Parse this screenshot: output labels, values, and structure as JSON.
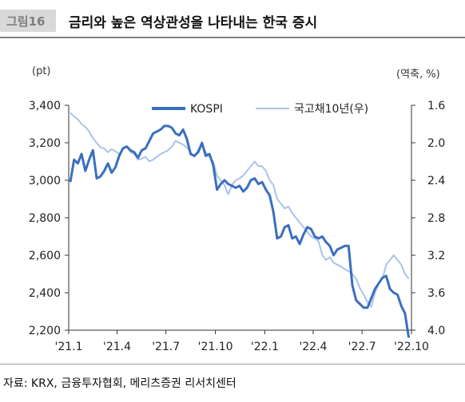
{
  "header": {
    "figure_number": "그림16",
    "title": "금리와 높은 역상관성을 나타내는 한국 증시"
  },
  "units": {
    "left": "(pt)",
    "right": "(역축, %)"
  },
  "source": "자료: KRX, 금융투자협회, 메리츠증권 리서치센터",
  "colors": {
    "kospi": "#3a6fbf",
    "bond": "#a9c4ea",
    "axis": "#333333",
    "title_bar": "#d9d9d9"
  },
  "chart_data": {
    "type": "line",
    "legend_position": "top",
    "grid": false,
    "x_tick_labels": [
      "'21.1",
      "'21.4",
      "'21.7",
      "'21.10",
      "'22.1",
      "'22.4",
      "'22.7",
      "'22.10"
    ],
    "x_tick_dates": [
      "2021-01-01",
      "2021-04-01",
      "2021-07-01",
      "2021-10-01",
      "2022-01-01",
      "2022-04-01",
      "2022-07-01",
      "2022-10-01"
    ],
    "y_left": {
      "min": 2200,
      "max": 3400,
      "ticks": [
        "2,200",
        "2,400",
        "2,600",
        "2,800",
        "3,000",
        "3,200",
        "3,400"
      ]
    },
    "y_right": {
      "min": 1.6,
      "max": 4.0,
      "inverted": true,
      "ticks": [
        "1.6",
        "2.0",
        "2.4",
        "2.8",
        "3.2",
        "3.6",
        "4.0"
      ]
    },
    "series": [
      {
        "name": "KOSPI",
        "axis": "left",
        "x": [
          "2021-01-04",
          "2021-01-11",
          "2021-01-18",
          "2021-01-25",
          "2021-02-01",
          "2021-02-08",
          "2021-02-15",
          "2021-02-22",
          "2021-03-01",
          "2021-03-08",
          "2021-03-15",
          "2021-03-22",
          "2021-03-29",
          "2021-04-05",
          "2021-04-12",
          "2021-04-19",
          "2021-04-26",
          "2021-05-03",
          "2021-05-10",
          "2021-05-17",
          "2021-05-24",
          "2021-05-31",
          "2021-06-07",
          "2021-06-14",
          "2021-06-21",
          "2021-06-28",
          "2021-07-05",
          "2021-07-12",
          "2021-07-19",
          "2021-07-26",
          "2021-08-02",
          "2021-08-09",
          "2021-08-16",
          "2021-08-23",
          "2021-08-30",
          "2021-09-06",
          "2021-09-13",
          "2021-09-20",
          "2021-09-27",
          "2021-10-04",
          "2021-10-11",
          "2021-10-18",
          "2021-10-25",
          "2021-11-01",
          "2021-11-08",
          "2021-11-15",
          "2021-11-22",
          "2021-11-29",
          "2021-12-06",
          "2021-12-13",
          "2021-12-20",
          "2021-12-27",
          "2022-01-03",
          "2022-01-10",
          "2022-01-17",
          "2022-01-24",
          "2022-01-31",
          "2022-02-07",
          "2022-02-14",
          "2022-02-21",
          "2022-02-28",
          "2022-03-07",
          "2022-03-14",
          "2022-03-21",
          "2022-03-28",
          "2022-04-04",
          "2022-04-11",
          "2022-04-18",
          "2022-04-25",
          "2022-05-02",
          "2022-05-09",
          "2022-05-16",
          "2022-05-23",
          "2022-05-30",
          "2022-06-06",
          "2022-06-13",
          "2022-06-20",
          "2022-06-27",
          "2022-07-04",
          "2022-07-11",
          "2022-07-18",
          "2022-07-25",
          "2022-08-01",
          "2022-08-08",
          "2022-08-15",
          "2022-08-22",
          "2022-08-29",
          "2022-09-05",
          "2022-09-12",
          "2022-09-19",
          "2022-09-26"
        ],
        "values": [
          2990,
          3110,
          3090,
          3140,
          3050,
          3110,
          3160,
          3010,
          3020,
          3050,
          3090,
          3040,
          3070,
          3130,
          3170,
          3180,
          3160,
          3150,
          3120,
          3160,
          3170,
          3210,
          3250,
          3260,
          3270,
          3290,
          3290,
          3280,
          3250,
          3240,
          3270,
          3220,
          3140,
          3130,
          3150,
          3200,
          3130,
          3140,
          3080,
          2950,
          2980,
          3000,
          2980,
          2970,
          2960,
          2970,
          2940,
          2960,
          3000,
          3010,
          2980,
          2990,
          2950,
          2920,
          2830,
          2690,
          2700,
          2750,
          2760,
          2690,
          2700,
          2660,
          2710,
          2750,
          2740,
          2700,
          2690,
          2700,
          2670,
          2650,
          2600,
          2630,
          2640,
          2650,
          2650,
          2440,
          2360,
          2340,
          2320,
          2320,
          2370,
          2420,
          2450,
          2480,
          2490,
          2420,
          2400,
          2390,
          2330,
          2290,
          2160
        ]
      },
      {
        "name": "국고채10년(우)",
        "axis": "right",
        "x": [
          "2021-01-04",
          "2021-01-11",
          "2021-01-18",
          "2021-01-25",
          "2021-02-01",
          "2021-02-08",
          "2021-02-15",
          "2021-02-22",
          "2021-03-01",
          "2021-03-08",
          "2021-03-15",
          "2021-03-22",
          "2021-03-29",
          "2021-04-05",
          "2021-04-12",
          "2021-04-19",
          "2021-04-26",
          "2021-05-03",
          "2021-05-10",
          "2021-05-17",
          "2021-05-24",
          "2021-05-31",
          "2021-06-07",
          "2021-06-14",
          "2021-06-21",
          "2021-06-28",
          "2021-07-05",
          "2021-07-12",
          "2021-07-19",
          "2021-07-26",
          "2021-08-02",
          "2021-08-09",
          "2021-08-16",
          "2021-08-23",
          "2021-08-30",
          "2021-09-06",
          "2021-09-13",
          "2021-09-20",
          "2021-09-27",
          "2021-10-04",
          "2021-10-11",
          "2021-10-18",
          "2021-10-25",
          "2021-11-01",
          "2021-11-08",
          "2021-11-15",
          "2021-11-22",
          "2021-11-29",
          "2021-12-06",
          "2021-12-13",
          "2021-12-20",
          "2021-12-27",
          "2022-01-03",
          "2022-01-10",
          "2022-01-17",
          "2022-01-24",
          "2022-01-31",
          "2022-02-07",
          "2022-02-14",
          "2022-02-21",
          "2022-02-28",
          "2022-03-07",
          "2022-03-14",
          "2022-03-21",
          "2022-03-28",
          "2022-04-04",
          "2022-04-11",
          "2022-04-18",
          "2022-04-25",
          "2022-05-02",
          "2022-05-09",
          "2022-05-16",
          "2022-05-23",
          "2022-05-30",
          "2022-06-06",
          "2022-06-13",
          "2022-06-20",
          "2022-06-27",
          "2022-07-04",
          "2022-07-11",
          "2022-07-18",
          "2022-07-25",
          "2022-08-01",
          "2022-08-08",
          "2022-08-15",
          "2022-08-22",
          "2022-08-29",
          "2022-09-05",
          "2022-09-12",
          "2022-09-19",
          "2022-09-26"
        ],
        "values": [
          1.68,
          1.72,
          1.75,
          1.8,
          1.83,
          1.88,
          1.95,
          2.0,
          2.05,
          2.06,
          2.1,
          2.07,
          2.09,
          2.12,
          2.06,
          2.04,
          2.1,
          2.12,
          2.18,
          2.17,
          2.15,
          2.2,
          2.18,
          2.15,
          2.12,
          2.1,
          2.08,
          2.04,
          1.98,
          2.0,
          2.02,
          2.05,
          2.1,
          2.15,
          2.07,
          2.03,
          2.1,
          2.15,
          2.2,
          2.35,
          2.4,
          2.45,
          2.55,
          2.45,
          2.4,
          2.38,
          2.35,
          2.3,
          2.25,
          2.2,
          2.25,
          2.25,
          2.3,
          2.4,
          2.45,
          2.6,
          2.65,
          2.7,
          2.68,
          2.75,
          2.8,
          2.85,
          2.9,
          2.95,
          3.0,
          3.02,
          3.05,
          3.2,
          3.25,
          3.22,
          3.28,
          3.3,
          3.32,
          3.35,
          3.37,
          3.4,
          3.45,
          3.55,
          3.62,
          3.7,
          3.75,
          3.6,
          3.5,
          3.45,
          3.3,
          3.25,
          3.2,
          3.25,
          3.3,
          3.4,
          3.45
        ]
      }
    ]
  }
}
